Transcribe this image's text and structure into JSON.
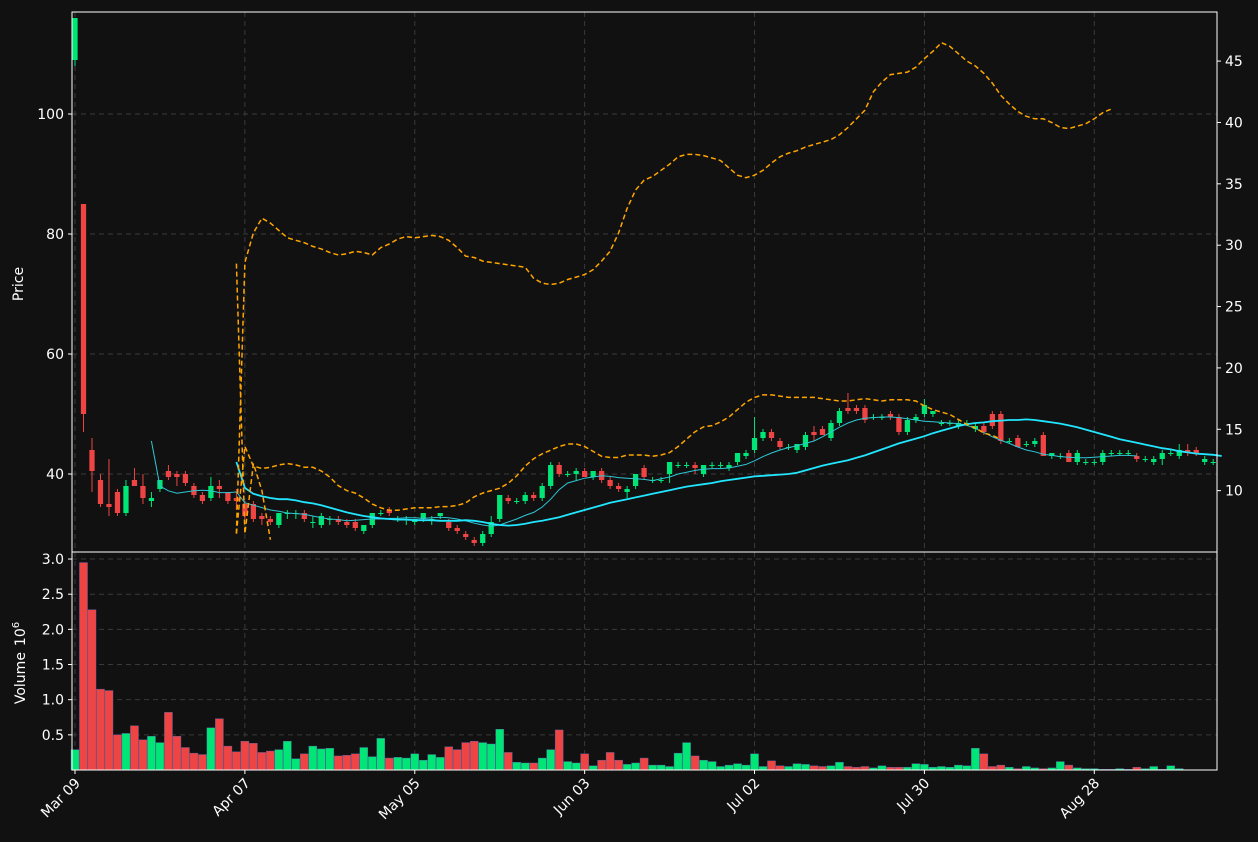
{
  "colors": {
    "background": "#111111",
    "up": "#00e676",
    "down": "#ef4444",
    "ma_fast": "#2ec7d6",
    "ma_slow": "#22e6ff",
    "secondary": "#ffa500",
    "grid": "#3a3a3a",
    "axis": "#ffffff"
  },
  "chart_data": {
    "type": "candlestick",
    "grid": true,
    "price_axis": {
      "label": "Price",
      "ylim": [
        27,
        117
      ],
      "ticks": [
        40,
        60,
        80,
        100
      ]
    },
    "secondary_axis": {
      "label": "",
      "ylim": [
        5,
        49
      ],
      "ticks": [
        10,
        15,
        20,
        25,
        30,
        35,
        40,
        45
      ]
    },
    "volume_axis": {
      "label": "Volume",
      "multiplier": "10",
      "exponent": "6",
      "ylim": [
        0,
        3.1
      ],
      "ticks": [
        "0.5",
        "1.0",
        "1.5",
        "2.0",
        "2.5",
        "3.0"
      ]
    },
    "x_ticks": [
      "Mar 09",
      "Apr 07",
      "May 05",
      "Jun 03",
      "Jul 02",
      "Jul 30",
      "Aug 28"
    ],
    "x_tick_index": [
      0,
      20,
      40,
      60,
      80,
      100,
      120
    ],
    "candles": [
      [
        109,
        116,
        108,
        116
      ],
      [
        85,
        85,
        47,
        50
      ],
      [
        44,
        46,
        37,
        40.5
      ],
      [
        39,
        40,
        34.5,
        35
      ],
      [
        35,
        42.5,
        33,
        34.5
      ],
      [
        37,
        37.5,
        33,
        33.5
      ],
      [
        33.5,
        39,
        33,
        38
      ],
      [
        39,
        41,
        38,
        38
      ],
      [
        38,
        40,
        35,
        36
      ],
      [
        35.5,
        37,
        34.5,
        36
      ],
      [
        37.5,
        39,
        37,
        39
      ],
      [
        40.5,
        41.5,
        39,
        39.5
      ],
      [
        40,
        40.5,
        38,
        39.5
      ],
      [
        40,
        40.5,
        38,
        38.5
      ],
      [
        38,
        38.5,
        36,
        36.5
      ],
      [
        36.5,
        37,
        35,
        35.5
      ],
      [
        36,
        39.5,
        35.5,
        38
      ],
      [
        38,
        39,
        36,
        37.5
      ],
      [
        37,
        37,
        35,
        35.5
      ],
      [
        36,
        37.5,
        34,
        35.5
      ],
      [
        35,
        35.5,
        32.5,
        33
      ],
      [
        35,
        35.5,
        32,
        32.5
      ],
      [
        33,
        33.5,
        31.5,
        32.5
      ],
      [
        32.5,
        33,
        31.5,
        32
      ],
      [
        31.5,
        33.5,
        31,
        33.5
      ],
      [
        33.5,
        34,
        32.5,
        33.5
      ],
      [
        33.5,
        34,
        32.5,
        33.5
      ],
      [
        33.5,
        34,
        32,
        32.5
      ],
      [
        32,
        33,
        31,
        32
      ],
      [
        31.5,
        33.5,
        31,
        33
      ],
      [
        32.5,
        33,
        31.5,
        32.5
      ],
      [
        32.5,
        33,
        31.5,
        32
      ],
      [
        32,
        32.5,
        31,
        31.5
      ],
      [
        32,
        32.5,
        30.5,
        31
      ],
      [
        30.5,
        31.5,
        30,
        31.5
      ],
      [
        31.5,
        33.5,
        31,
        33.5
      ],
      [
        33.5,
        34,
        33,
        33.5
      ],
      [
        34,
        34.5,
        33,
        33.5
      ],
      [
        32.5,
        33,
        32,
        32.5
      ],
      [
        32.5,
        33,
        31.5,
        32.5
      ],
      [
        32,
        32.5,
        31.5,
        32.5
      ],
      [
        32.5,
        33.5,
        32,
        33.5
      ],
      [
        32.5,
        33,
        31.5,
        32.5
      ],
      [
        33,
        33.5,
        32.5,
        33.5
      ],
      [
        32,
        32.5,
        30.5,
        31
      ],
      [
        31,
        31.5,
        30,
        30.5
      ],
      [
        30,
        30.5,
        29,
        29.5
      ],
      [
        29,
        29.5,
        28,
        28.5
      ],
      [
        28.5,
        30.5,
        28,
        30
      ],
      [
        30,
        33,
        29.5,
        32
      ],
      [
        32.5,
        36.5,
        32,
        36.5
      ],
      [
        36,
        36.5,
        35,
        35.5
      ],
      [
        35.5,
        36,
        35,
        35.5
      ],
      [
        35.5,
        37,
        35,
        36.5
      ],
      [
        36.5,
        37,
        35.5,
        36
      ],
      [
        36,
        38.5,
        35.5,
        38
      ],
      [
        38,
        42,
        37.5,
        41.5
      ],
      [
        41.5,
        42,
        39.5,
        40
      ],
      [
        40,
        40.5,
        39.5,
        40
      ],
      [
        40,
        41,
        39,
        40.5
      ],
      [
        40.5,
        41,
        39.5,
        39.5
      ],
      [
        39.5,
        40.5,
        39,
        40.5
      ],
      [
        40.5,
        41,
        38.5,
        39
      ],
      [
        39,
        39.5,
        37.5,
        38
      ],
      [
        38,
        38.5,
        37,
        37.5
      ],
      [
        37,
        38,
        36,
        37.5
      ],
      [
        38,
        40,
        37.5,
        40
      ],
      [
        41,
        41.5,
        39,
        39.5
      ],
      [
        39,
        39.5,
        38.5,
        39
      ],
      [
        39,
        39.5,
        38.5,
        39
      ],
      [
        40,
        42,
        38.5,
        42
      ],
      [
        41.5,
        42,
        41,
        41.5
      ],
      [
        41.5,
        42,
        41,
        41.5
      ],
      [
        41.5,
        42,
        40,
        41
      ],
      [
        40,
        41.5,
        39.5,
        41.5
      ],
      [
        41.5,
        42,
        41,
        41.5
      ],
      [
        41.5,
        42,
        41,
        41.5
      ],
      [
        41,
        42,
        40.5,
        41.5
      ],
      [
        42,
        43.5,
        41.5,
        43.5
      ],
      [
        43,
        44,
        42.5,
        43.5
      ],
      [
        44,
        49.5,
        43.5,
        46
      ],
      [
        46,
        47.5,
        45.5,
        47
      ],
      [
        47,
        47.5,
        45.5,
        46
      ],
      [
        45.5,
        46,
        44,
        44.5
      ],
      [
        44.5,
        45,
        44,
        44.5
      ],
      [
        44,
        45,
        43.5,
        45
      ],
      [
        44.5,
        47,
        44,
        46.5
      ],
      [
        47,
        48,
        45.5,
        46.5
      ],
      [
        47.5,
        48,
        46.5,
        46.5
      ],
      [
        46,
        49,
        45.5,
        48.5
      ],
      [
        48.5,
        51,
        48,
        50.5
      ],
      [
        51,
        53.5,
        50,
        50.5
      ],
      [
        51,
        51.5,
        50,
        50.5
      ],
      [
        51,
        51.5,
        48.5,
        49
      ],
      [
        49.5,
        50,
        49,
        49.5
      ],
      [
        49.5,
        50,
        49,
        49.5
      ],
      [
        50,
        50.5,
        49,
        49.5
      ],
      [
        49.5,
        50,
        46.5,
        47
      ],
      [
        47,
        49.5,
        46.5,
        49
      ],
      [
        49,
        50,
        48.5,
        49.5
      ],
      [
        50,
        52.5,
        49.5,
        51.5
      ],
      [
        50,
        50.5,
        49.5,
        50.5
      ],
      [
        48.5,
        49,
        48,
        48.5
      ],
      [
        48.5,
        49,
        48,
        48.5
      ],
      [
        48,
        49,
        47.5,
        48.5
      ],
      [
        48.5,
        49,
        48,
        48.5
      ],
      [
        47.5,
        48.5,
        47,
        48
      ],
      [
        48,
        48.5,
        46.5,
        47
      ],
      [
        50,
        50.5,
        47.5,
        48
      ],
      [
        50,
        50.5,
        45,
        45.5
      ],
      [
        45.5,
        46,
        45,
        45.5
      ],
      [
        46,
        46.5,
        44.5,
        44.5
      ],
      [
        45,
        45.5,
        44.5,
        45
      ],
      [
        45,
        46,
        44.5,
        45.5
      ],
      [
        46.5,
        47,
        43,
        43
      ],
      [
        43,
        43.5,
        42.5,
        43.5
      ],
      [
        43,
        43.5,
        42.5,
        43
      ],
      [
        43.5,
        44,
        42,
        42
      ],
      [
        42,
        44,
        41.5,
        43.5
      ],
      [
        42,
        42.5,
        41.5,
        42
      ],
      [
        42,
        42.5,
        41.5,
        42
      ],
      [
        42,
        44,
        41.5,
        43.5
      ],
      [
        43.5,
        44,
        43,
        43.5
      ],
      [
        43.5,
        44,
        43,
        43.5
      ],
      [
        43.5,
        44,
        43,
        43.5
      ],
      [
        43,
        43.5,
        42,
        42.5
      ],
      [
        42.5,
        43,
        42,
        42.5
      ],
      [
        42,
        43,
        41.5,
        42.5
      ],
      [
        42.5,
        44,
        41.5,
        43.5
      ],
      [
        43.5,
        44,
        43,
        43.5
      ],
      [
        43,
        45,
        42.5,
        44
      ],
      [
        44,
        45,
        43,
        43.5
      ],
      [
        44,
        44.5,
        43,
        43.5
      ],
      [
        42,
        43,
        41.5,
        42.5
      ],
      [
        42,
        42.5,
        41.5,
        42
      ]
    ],
    "volume": [
      0.29,
      2.95,
      2.28,
      1.15,
      1.13,
      0.5,
      0.52,
      0.63,
      0.43,
      0.48,
      0.39,
      0.82,
      0.48,
      0.32,
      0.24,
      0.22,
      0.6,
      0.73,
      0.34,
      0.26,
      0.41,
      0.38,
      0.25,
      0.27,
      0.29,
      0.41,
      0.16,
      0.23,
      0.34,
      0.3,
      0.31,
      0.2,
      0.21,
      0.23,
      0.32,
      0.19,
      0.45,
      0.17,
      0.18,
      0.17,
      0.23,
      0.14,
      0.22,
      0.18,
      0.33,
      0.29,
      0.39,
      0.41,
      0.39,
      0.37,
      0.58,
      0.25,
      0.11,
      0.1,
      0.1,
      0.17,
      0.29,
      0.57,
      0.12,
      0.1,
      0.23,
      0.06,
      0.14,
      0.25,
      0.14,
      0.08,
      0.1,
      0.17,
      0.07,
      0.07,
      0.05,
      0.24,
      0.39,
      0.2,
      0.14,
      0.12,
      0.05,
      0.07,
      0.09,
      0.07,
      0.23,
      0.05,
      0.13,
      0.06,
      0.05,
      0.09,
      0.08,
      0.06,
      0.05,
      0.06,
      0.11,
      0.05,
      0.04,
      0.05,
      0.03,
      0.06,
      0.04,
      0.04,
      0.04,
      0.09,
      0.08,
      0.04,
      0.05,
      0.04,
      0.07,
      0.06,
      0.31,
      0.23,
      0.05,
      0.07,
      0.04,
      0.02,
      0.05,
      0.03,
      0.02,
      0.03,
      0.12,
      0.07,
      0.03,
      0.02,
      0.02,
      0.01,
      0.01,
      0.02,
      0.01,
      0.04,
      0.02,
      0.05,
      0.01,
      0.06,
      0.02
    ],
    "ma_fast": {
      "start": 9,
      "values": [
        45.5,
        38,
        37.2,
        36.8,
        37,
        37.2,
        37.3,
        37.2,
        36.9,
        36.9,
        37,
        35.2,
        34.8,
        34.4,
        34,
        33.8,
        33.5,
        33.4,
        33.3,
        33,
        32.7,
        32.5,
        32.4,
        32.2,
        32.3,
        32.4,
        32.5,
        32.5,
        32.6,
        32.6,
        32.7,
        32.7,
        32.6,
        32.7,
        32.8,
        32.7,
        32.5,
        32.2,
        31.8,
        31.5,
        31.3,
        31.5,
        32,
        32.5,
        33.1,
        33.6,
        34.5,
        35.8,
        37.4,
        38.5,
        38.9,
        39.3,
        39.5,
        39.7,
        39.6,
        39.4,
        39.3,
        39.2,
        39.1,
        38.9,
        39.2,
        39.5,
        40,
        40.3,
        40.6,
        40.8,
        40.9,
        40.9,
        41,
        41.3,
        41.6,
        42.2,
        42.9,
        43.5,
        44,
        44.4,
        44.7,
        45.1,
        45.5,
        46.2,
        47,
        47.8,
        48.5,
        49,
        49.3,
        49.4,
        49.5,
        49.5,
        49.4,
        49.2,
        49,
        48.8,
        48.7,
        48.6,
        48.5,
        48.4,
        48.1,
        47.6,
        46.9,
        46.2,
        45.6,
        45.1,
        44.5,
        44,
        43.7,
        43.3,
        43.1,
        42.9,
        42.8,
        42.7,
        42.7,
        42.8,
        42.9,
        43,
        43.1,
        43.1,
        43
      ]
    },
    "ma_slow": {
      "start": 19,
      "values": [
        42,
        37.7,
        36.7,
        36.3,
        36,
        35.8,
        35.8,
        35.6,
        35.3,
        35.1,
        34.8,
        34.4,
        34,
        33.6,
        33.3,
        33,
        32.8,
        32.6,
        32.5,
        32.4,
        32.4,
        32.3,
        32.3,
        32.3,
        32.2,
        32.2,
        32.2,
        32.3,
        32.2,
        32,
        31.7,
        31.5,
        31.4,
        31.5,
        31.7,
        32,
        32.2,
        32.5,
        32.8,
        33.2,
        33.6,
        34,
        34.4,
        34.8,
        35.2,
        35.5,
        35.8,
        36.1,
        36.4,
        36.7,
        37,
        37.3,
        37.6,
        37.9,
        38.1,
        38.3,
        38.5,
        38.8,
        39,
        39.2,
        39.4,
        39.6,
        39.7,
        39.8,
        39.9,
        40,
        40.2,
        40.6,
        41,
        41.4,
        41.7,
        42,
        42.3,
        42.7,
        43.1,
        43.6,
        44.1,
        44.6,
        45.1,
        45.5,
        45.9,
        46.3,
        46.8,
        47.2,
        47.6,
        48,
        48.3,
        48.5,
        48.6,
        48.8,
        48.9,
        49,
        49,
        49.1,
        49,
        48.8,
        48.6,
        48.4,
        48.1,
        47.8,
        47.4,
        47,
        46.6,
        46.2,
        45.8,
        45.5,
        45.2,
        44.9,
        44.6,
        44.3,
        44.1,
        43.8,
        43.6,
        43.4,
        43.3,
        43.2,
        43
      ]
    },
    "secondary_series": [
      {
        "start": 19,
        "values": [
          28.5,
          6.5,
          12.2,
          10,
          6
        ]
      },
      {
        "start": 19,
        "values": [
          6.5,
          28.6,
          31,
          32.2,
          31.8,
          31.2,
          30.6,
          30.4,
          30.2,
          29.9,
          29.7,
          29.4,
          29.2,
          29.3,
          29.5,
          29.4,
          29.2,
          29.8,
          30.1,
          30.5,
          30.7,
          30.6,
          30.7,
          30.8,
          30.7,
          30.4,
          29.8,
          29.1,
          29,
          28.7,
          28.6,
          28.5,
          28.4,
          28.3,
          28.2,
          27.3,
          26.9,
          26.8,
          26.9,
          27.2,
          27.4,
          27.6,
          28,
          28.7,
          29.5,
          31,
          33,
          34.5,
          35.3,
          35.6,
          36.1,
          36.6,
          37.2,
          37.4,
          37.4,
          37.3,
          37.1,
          36.9,
          36.3,
          35.7,
          35.5,
          35.7,
          36.1,
          36.7,
          37.2,
          37.5,
          37.7,
          38,
          38.2,
          38.4,
          38.6,
          39,
          39.6,
          40.3,
          41,
          42.5,
          43.3,
          43.9,
          44,
          44.1,
          44.5,
          45.2,
          45.8,
          46.5,
          46.2,
          45.6,
          45,
          44.6,
          44,
          43.2,
          42.2,
          41.5,
          40.9,
          40.5,
          40.3,
          40.3,
          40,
          39.6,
          39.5,
          39.7,
          39.9,
          40.3,
          40.8,
          41.1
        ]
      },
      {
        "start": 19,
        "values": [
          6.5,
          13.6,
          12,
          11.8,
          11.9,
          12.1,
          12.2,
          12.1,
          11.9,
          11.9,
          11.6,
          11.1,
          10.4,
          10,
          9.8,
          9.4,
          8.9,
          8.6,
          8.4,
          8.4,
          8.5,
          8.6,
          8.6,
          8.6,
          8.7,
          8.7,
          8.8,
          9,
          9.5,
          9.8,
          10,
          10.2,
          10.6,
          11.2,
          12,
          12.6,
          13,
          13.3,
          13.6,
          13.8,
          13.8,
          13.6,
          13.2,
          12.8,
          12.7,
          12.7,
          12.9,
          12.9,
          12.9,
          12.8,
          12.9,
          13.1,
          13.6,
          14.2,
          14.8,
          15.2,
          15.3,
          15.6,
          16,
          16.6,
          17.2,
          17.6,
          17.8,
          17.8,
          17.7,
          17.6,
          17.6,
          17.6,
          17.6,
          17.5,
          17.4,
          17.3,
          17.3,
          17.4,
          17.5,
          17.4,
          17.3,
          17.4,
          17.4,
          17.4,
          17.3,
          16.9,
          16.6,
          16.4,
          16.2,
          15.8,
          15.4,
          15.1,
          14.7,
          14.5,
          14.2
        ]
      }
    ]
  }
}
